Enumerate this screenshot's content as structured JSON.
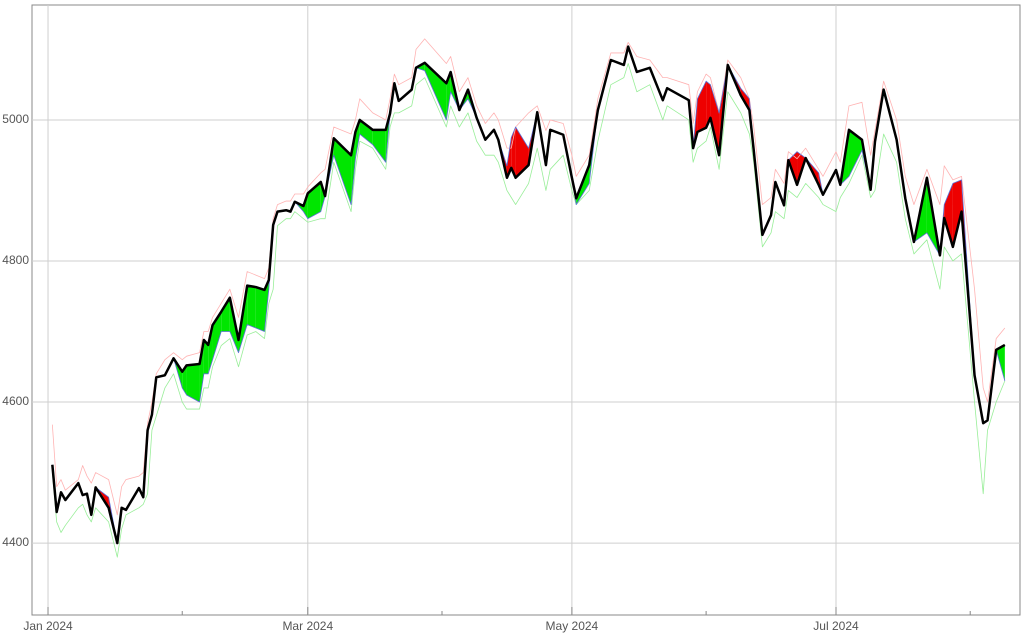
{
  "chart_data": {
    "type": "line",
    "x": [
      1,
      2,
      3,
      4,
      7,
      8,
      9,
      10,
      11,
      14,
      16,
      17,
      18,
      21,
      22,
      23,
      24,
      25,
      27,
      29,
      31,
      32,
      35,
      36,
      37,
      38,
      40,
      42,
      44,
      46,
      48,
      50,
      51,
      52,
      53,
      55,
      56,
      57,
      59,
      60,
      63,
      64,
      66,
      70,
      71,
      72,
      75,
      78,
      79,
      80,
      81,
      84,
      85,
      87,
      92,
      93,
      95,
      97,
      99,
      101,
      103,
      104,
      106,
      107,
      108,
      111,
      113,
      115,
      116,
      119,
      121,
      122,
      125,
      127,
      130,
      133,
      134,
      136,
      139,
      142,
      143,
      148,
      149,
      150,
      152,
      153,
      155,
      157,
      160,
      162,
      163,
      165,
      167,
      168,
      170,
      171,
      173,
      175,
      178,
      179,
      182,
      183,
      185,
      188,
      190,
      191,
      193,
      196,
      198,
      200,
      203,
      206,
      207,
      209,
      211,
      214,
      216,
      217,
      219,
      221
    ],
    "series": [
      {
        "color": "#000000",
        "width": 2.5,
        "values": [
          4511,
          4444,
          4472,
          4461,
          4485,
          4468,
          4470,
          4440,
          4479,
          4450,
          4400,
          4450,
          4447,
          4478,
          4465,
          4560,
          4582,
          4635,
          4638,
          4662,
          4643,
          4652,
          4654,
          4688,
          4681,
          4709,
          4728,
          4748,
          4688,
          4765,
          4763,
          4759,
          4773,
          4851,
          4870,
          4872,
          4870,
          4884,
          4878,
          4896,
          4912,
          4892,
          4974,
          4950,
          4983,
          5000,
          4986,
          4986,
          5009,
          5052,
          5027,
          5043,
          5074,
          5081,
          5052,
          5068,
          5014,
          5043,
          5003,
          4972,
          4986,
          4972,
          4918,
          4932,
          4918,
          4936,
          5011,
          4936,
          4986,
          4979,
          4918,
          4889,
          4936,
          5014,
          5085,
          5078,
          5104,
          5068,
          5074,
          5028,
          5045,
          5028,
          4960,
          4983,
          4989,
          5003,
          4950,
          5078,
          5035,
          5014,
          4957,
          4837,
          4865,
          4912,
          4879,
          4943,
          4908,
          4946,
          4908,
          4894,
          4929,
          4908,
          4986,
          4972,
          4901,
          4969,
          5043,
          4972,
          4889,
          4827,
          4918,
          4808,
          4861,
          4820,
          4870,
          4638,
          4570,
          4574,
          4674,
          4681
        ]
      },
      {
        "color": "#ffb3b3",
        "width": 0.8,
        "values": [
          4568,
          4480,
          4490,
          4475,
          4490,
          4510,
          4495,
          4485,
          4500,
          4490,
          4440,
          4480,
          4490,
          4495,
          4500,
          4570,
          4600,
          4640,
          4660,
          4670,
          4660,
          4665,
          4670,
          4700,
          4700,
          4720,
          4740,
          4760,
          4720,
          4785,
          4780,
          4775,
          4790,
          4860,
          4880,
          4885,
          4885,
          4895,
          4895,
          4905,
          4925,
          4930,
          4990,
          4980,
          5000,
          5030,
          5010,
          5000,
          5030,
          5065,
          5050,
          5060,
          5100,
          5115,
          5080,
          5090,
          5040,
          5060,
          5020,
          4995,
          5010,
          5000,
          4960,
          4960,
          4990,
          5010,
          5020,
          4985,
          5000,
          4995,
          4950,
          4920,
          4950,
          5030,
          5095,
          5095,
          5110,
          5090,
          5085,
          5060,
          5060,
          5050,
          4995,
          5040,
          5065,
          5060,
          5010,
          5085,
          5060,
          5030,
          4990,
          4880,
          4890,
          4930,
          4910,
          4955,
          4945,
          4960,
          4930,
          4920,
          4955,
          4940,
          5020,
          5025,
          4950,
          4985,
          5055,
          5000,
          4920,
          4880,
          4930,
          4880,
          4935,
          4915,
          4920,
          4760,
          4620,
          4600,
          4690,
          4705
        ]
      },
      {
        "color": "#99ee99",
        "width": 0.8,
        "values": [
          4500,
          4430,
          4415,
          4425,
          4450,
          4455,
          4440,
          4430,
          4450,
          4430,
          4380,
          4420,
          4440,
          4450,
          4455,
          4470,
          4560,
          4580,
          4620,
          4640,
          4600,
          4590,
          4590,
          4620,
          4620,
          4650,
          4680,
          4690,
          4650,
          4695,
          4700,
          4690,
          4740,
          4760,
          4850,
          4860,
          4860,
          4870,
          4860,
          4855,
          4860,
          4860,
          4940,
          4870,
          4930,
          4970,
          4960,
          4930,
          4990,
          5010,
          5010,
          5020,
          5050,
          5060,
          4990,
          5020,
          4990,
          5010,
          4970,
          4950,
          4950,
          4940,
          4900,
          4890,
          4880,
          4910,
          4960,
          4900,
          4930,
          4950,
          4900,
          4880,
          4900,
          4970,
          5050,
          5060,
          5080,
          5040,
          5050,
          5000,
          5020,
          5000,
          4940,
          4960,
          4970,
          4990,
          4930,
          5040,
          5010,
          4980,
          4940,
          4820,
          4840,
          4870,
          4860,
          4900,
          4890,
          4910,
          4890,
          4880,
          4870,
          4890,
          4910,
          4950,
          4890,
          4900,
          4980,
          4940,
          4860,
          4810,
          4830,
          4760,
          4820,
          4800,
          4810,
          4600,
          4470,
          4560,
          4600,
          4630
        ]
      },
      {
        "color": "#5b6fd6",
        "width": 0.8,
        "values": [
          4511,
          4444,
          4472,
          4461,
          4485,
          4468,
          4470,
          4440,
          4479,
          4465,
          4400,
          4450,
          4447,
          4478,
          4465,
          4560,
          4582,
          4635,
          4638,
          4662,
          4620,
          4610,
          4600,
          4640,
          4640,
          4660,
          4700,
          4700,
          4670,
          4710,
          4705,
          4700,
          4760,
          4851,
          4870,
          4872,
          4870,
          4884,
          4870,
          4860,
          4870,
          4892,
          4950,
          4880,
          4945,
          4980,
          4965,
          4940,
          5009,
          5052,
          5027,
          5043,
          5074,
          5070,
          5000,
          5040,
          5014,
          5030,
          5003,
          4972,
          4986,
          4972,
          4935,
          4975,
          4990,
          4960,
          5011,
          4936,
          4986,
          4979,
          4918,
          4880,
          4910,
          5014,
          5085,
          5078,
          5104,
          5068,
          5074,
          5028,
          5045,
          5028,
          4960,
          5030,
          5055,
          5050,
          5010,
          5078,
          5045,
          5030,
          4957,
          4837,
          4865,
          4912,
          4879,
          4943,
          4955,
          4946,
          4925,
          4894,
          4929,
          4908,
          4920,
          4957,
          4901,
          4969,
          5043,
          4972,
          4889,
          4827,
          4840,
          4808,
          4880,
          4910,
          4915,
          4638,
          4570,
          4574,
          4674,
          4630
        ]
      }
    ],
    "fill_between": [
      0,
      3
    ],
    "fill_up_color": "#00e600",
    "fill_down_color": "#ee0000",
    "xlim": [
      -3.7,
      224.5
    ],
    "ylim": [
      4298,
      5163
    ],
    "xticks": [
      {
        "value": 0,
        "label": "Jan 2024"
      },
      {
        "value": 60,
        "label": "Mar 2024"
      },
      {
        "value": 121,
        "label": "May 2024"
      },
      {
        "value": 182,
        "label": "Jul 2024"
      }
    ],
    "xminor_ticks": [
      31,
      91,
      152,
      213
    ],
    "yticks": [
      4400,
      4600,
      4800,
      5000
    ],
    "grid": true
  }
}
